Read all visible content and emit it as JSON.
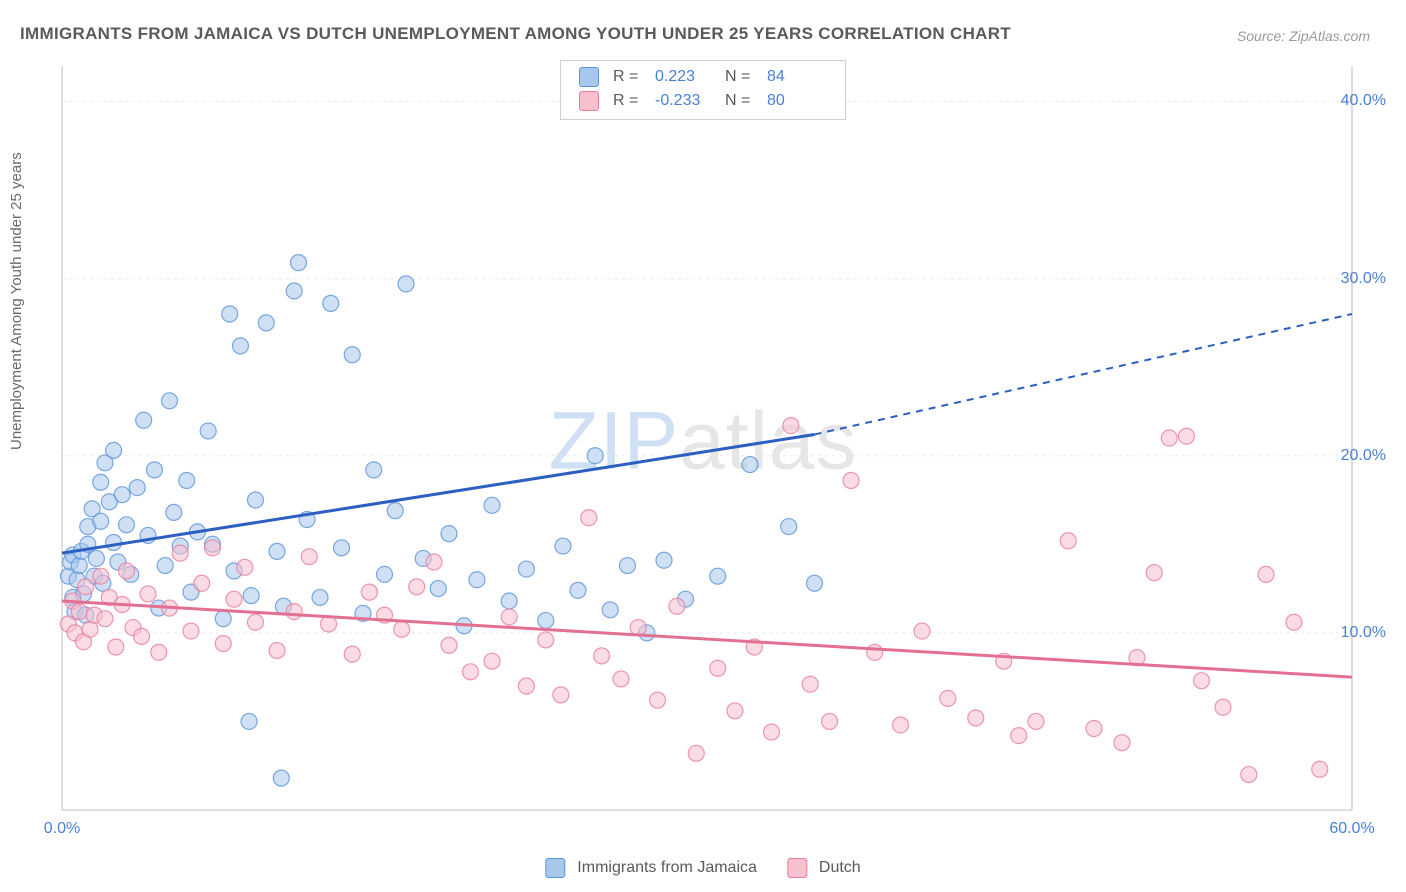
{
  "title": "IMMIGRANTS FROM JAMAICA VS DUTCH UNEMPLOYMENT AMONG YOUTH UNDER 25 YEARS CORRELATION CHART",
  "source_label": "Source: ZipAtlas.com",
  "watermark": {
    "zip": "ZIP",
    "atlas": "atlas"
  },
  "y_axis_label": "Unemployment Among Youth under 25 years",
  "colors": {
    "series_blue_fill": "#a8c7ec",
    "series_blue_stroke": "#5a93d8",
    "series_blue_line": "#2c5fc1",
    "series_pink_fill": "#f7c0cd",
    "series_pink_stroke": "#e87d9d",
    "series_pink_line": "#e36f92",
    "grid": "#e9e9e9",
    "axis": "#d4d4d4",
    "tick_text": "#4a7fd8",
    "title_text": "#5a5a5a",
    "source_text": "#9a9a9a",
    "bg": "#ffffff"
  },
  "legend_top": {
    "rows": [
      {
        "swatch": "blue",
        "r_label": "R =",
        "r_value": "0.223",
        "n_label": "N =",
        "n_value": "84"
      },
      {
        "swatch": "pink",
        "r_label": "R =",
        "r_value": "-0.233",
        "n_label": "N =",
        "n_value": "80"
      }
    ]
  },
  "legend_bottom": {
    "items": [
      {
        "swatch": "blue",
        "label": "Immigrants from Jamaica"
      },
      {
        "swatch": "pink",
        "label": "Dutch"
      }
    ]
  },
  "axes": {
    "xlim": [
      0,
      60
    ],
    "ylim": [
      0,
      42
    ],
    "yticks": [
      {
        "v": 10,
        "label": "10.0%"
      },
      {
        "v": 20,
        "label": "20.0%"
      },
      {
        "v": 30,
        "label": "30.0%"
      },
      {
        "v": 40,
        "label": "40.0%"
      }
    ],
    "xtick_min": {
      "v": 0,
      "label": "0.0%"
    },
    "xtick_max": {
      "v": 60,
      "label": "60.0%"
    }
  },
  "trend_lines": {
    "blue": {
      "x1": 0,
      "y1": 14.5,
      "x2_solid": 35,
      "y2_solid": 21.2,
      "x2_dash": 60,
      "y2_dash": 28.0
    },
    "pink": {
      "x1": 0,
      "y1": 11.8,
      "x2": 60,
      "y2": 7.5
    }
  },
  "marker_radius": 8,
  "marker_opacity": 0.55,
  "series": {
    "blue": [
      [
        0.3,
        13.2
      ],
      [
        0.4,
        14.0
      ],
      [
        0.5,
        12.0
      ],
      [
        0.5,
        14.4
      ],
      [
        0.6,
        11.2
      ],
      [
        0.7,
        13.0
      ],
      [
        0.8,
        13.8
      ],
      [
        0.9,
        14.6
      ],
      [
        1.0,
        12.2
      ],
      [
        1.1,
        11.0
      ],
      [
        1.2,
        15.0
      ],
      [
        1.2,
        16.0
      ],
      [
        1.4,
        17.0
      ],
      [
        1.5,
        13.2
      ],
      [
        1.6,
        14.2
      ],
      [
        1.8,
        18.5
      ],
      [
        1.8,
        16.3
      ],
      [
        1.9,
        12.8
      ],
      [
        2.0,
        19.6
      ],
      [
        2.2,
        17.4
      ],
      [
        2.4,
        15.1
      ],
      [
        2.4,
        20.3
      ],
      [
        2.6,
        14.0
      ],
      [
        2.8,
        17.8
      ],
      [
        3.0,
        16.1
      ],
      [
        3.2,
        13.3
      ],
      [
        3.5,
        18.2
      ],
      [
        3.8,
        22.0
      ],
      [
        4.0,
        15.5
      ],
      [
        4.3,
        19.2
      ],
      [
        4.5,
        11.4
      ],
      [
        4.8,
        13.8
      ],
      [
        5.0,
        23.1
      ],
      [
        5.2,
        16.8
      ],
      [
        5.5,
        14.9
      ],
      [
        5.8,
        18.6
      ],
      [
        6.0,
        12.3
      ],
      [
        6.3,
        15.7
      ],
      [
        6.8,
        21.4
      ],
      [
        7.0,
        15.0
      ],
      [
        7.5,
        10.8
      ],
      [
        7.8,
        28.0
      ],
      [
        8.0,
        13.5
      ],
      [
        8.3,
        26.2
      ],
      [
        8.8,
        12.1
      ],
      [
        9.0,
        17.5
      ],
      [
        9.5,
        27.5
      ],
      [
        10.0,
        14.6
      ],
      [
        10.3,
        11.5
      ],
      [
        10.8,
        29.3
      ],
      [
        11.0,
        30.9
      ],
      [
        11.4,
        16.4
      ],
      [
        12.0,
        12.0
      ],
      [
        12.5,
        28.6
      ],
      [
        13.0,
        14.8
      ],
      [
        13.5,
        25.7
      ],
      [
        14.0,
        11.1
      ],
      [
        14.5,
        19.2
      ],
      [
        15.0,
        13.3
      ],
      [
        15.5,
        16.9
      ],
      [
        8.7,
        5.0
      ],
      [
        10.2,
        1.8
      ],
      [
        16.0,
        29.7
      ],
      [
        16.8,
        14.2
      ],
      [
        17.5,
        12.5
      ],
      [
        18.0,
        15.6
      ],
      [
        18.7,
        10.4
      ],
      [
        19.3,
        13.0
      ],
      [
        20.0,
        17.2
      ],
      [
        20.8,
        11.8
      ],
      [
        21.6,
        13.6
      ],
      [
        22.5,
        10.7
      ],
      [
        23.3,
        14.9
      ],
      [
        24.0,
        12.4
      ],
      [
        24.8,
        20.0
      ],
      [
        25.5,
        11.3
      ],
      [
        26.3,
        13.8
      ],
      [
        27.2,
        10.0
      ],
      [
        28.0,
        14.1
      ],
      [
        29.0,
        11.9
      ],
      [
        30.5,
        13.2
      ],
      [
        32.0,
        19.5
      ],
      [
        33.8,
        16.0
      ],
      [
        35.0,
        12.8
      ]
    ],
    "pink": [
      [
        0.3,
        10.5
      ],
      [
        0.5,
        11.8
      ],
      [
        0.6,
        10.0
      ],
      [
        0.8,
        11.2
      ],
      [
        1.0,
        9.5
      ],
      [
        1.1,
        12.6
      ],
      [
        1.3,
        10.2
      ],
      [
        1.5,
        11.0
      ],
      [
        1.8,
        13.2
      ],
      [
        2.0,
        10.8
      ],
      [
        2.2,
        12.0
      ],
      [
        2.5,
        9.2
      ],
      [
        2.8,
        11.6
      ],
      [
        3.0,
        13.5
      ],
      [
        3.3,
        10.3
      ],
      [
        3.7,
        9.8
      ],
      [
        4.0,
        12.2
      ],
      [
        4.5,
        8.9
      ],
      [
        5.0,
        11.4
      ],
      [
        5.5,
        14.5
      ],
      [
        6.0,
        10.1
      ],
      [
        6.5,
        12.8
      ],
      [
        7.0,
        14.8
      ],
      [
        7.5,
        9.4
      ],
      [
        8.0,
        11.9
      ],
      [
        8.5,
        13.7
      ],
      [
        9.0,
        10.6
      ],
      [
        10.0,
        9.0
      ],
      [
        10.8,
        11.2
      ],
      [
        11.5,
        14.3
      ],
      [
        12.4,
        10.5
      ],
      [
        13.5,
        8.8
      ],
      [
        14.3,
        12.3
      ],
      [
        15.0,
        11.0
      ],
      [
        15.8,
        10.2
      ],
      [
        16.5,
        12.6
      ],
      [
        17.3,
        14.0
      ],
      [
        18.0,
        9.3
      ],
      [
        19.0,
        7.8
      ],
      [
        20.0,
        8.4
      ],
      [
        20.8,
        10.9
      ],
      [
        21.6,
        7.0
      ],
      [
        22.5,
        9.6
      ],
      [
        23.2,
        6.5
      ],
      [
        24.5,
        16.5
      ],
      [
        25.1,
        8.7
      ],
      [
        26.0,
        7.4
      ],
      [
        26.8,
        10.3
      ],
      [
        27.7,
        6.2
      ],
      [
        28.6,
        11.5
      ],
      [
        29.5,
        3.2
      ],
      [
        30.5,
        8.0
      ],
      [
        31.3,
        5.6
      ],
      [
        32.2,
        9.2
      ],
      [
        33.0,
        4.4
      ],
      [
        33.9,
        21.7
      ],
      [
        34.8,
        7.1
      ],
      [
        35.7,
        5.0
      ],
      [
        36.7,
        18.6
      ],
      [
        37.8,
        8.9
      ],
      [
        39.0,
        4.8
      ],
      [
        40.0,
        10.1
      ],
      [
        41.2,
        6.3
      ],
      [
        42.5,
        5.2
      ],
      [
        43.8,
        8.4
      ],
      [
        44.5,
        4.2
      ],
      [
        45.3,
        5.0
      ],
      [
        46.8,
        15.2
      ],
      [
        48.0,
        4.6
      ],
      [
        49.3,
        3.8
      ],
      [
        50.0,
        8.6
      ],
      [
        50.8,
        13.4
      ],
      [
        51.5,
        21.0
      ],
      [
        52.3,
        21.1
      ],
      [
        53.0,
        7.3
      ],
      [
        54.0,
        5.8
      ],
      [
        55.2,
        2.0
      ],
      [
        56.0,
        13.3
      ],
      [
        57.3,
        10.6
      ],
      [
        58.5,
        2.3
      ]
    ]
  }
}
